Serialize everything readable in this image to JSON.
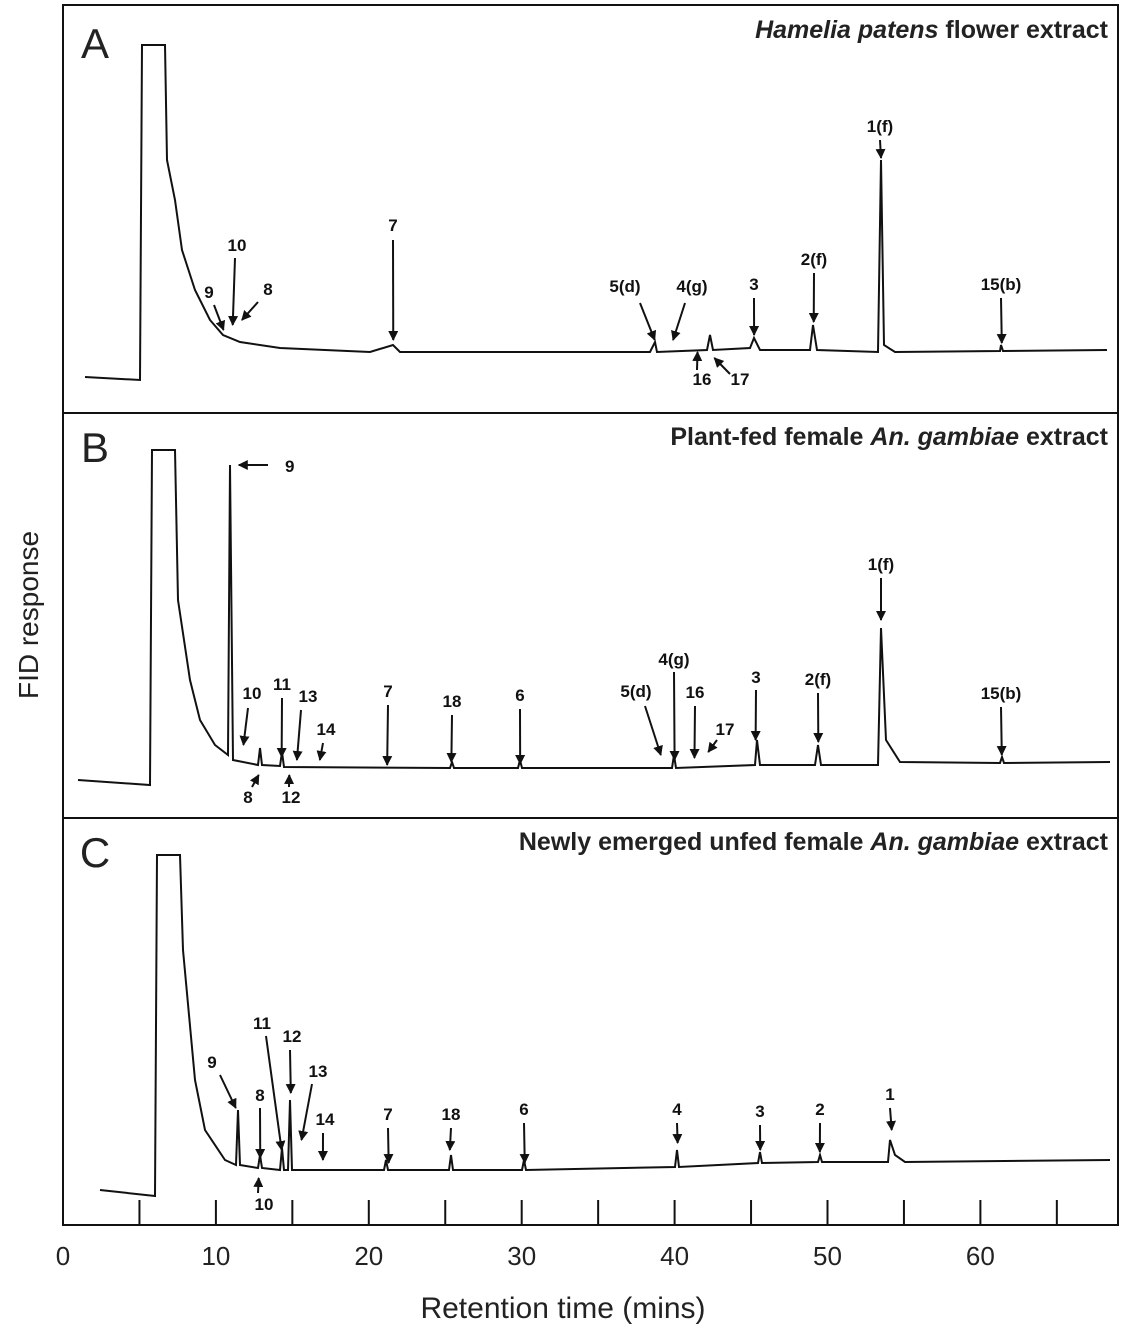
{
  "chart_data": {
    "type": "chromatogram",
    "x_label": "Retention time (mins)",
    "y_label": "FID response",
    "xlim": [
      0,
      69
    ],
    "xticks": [
      0,
      10,
      20,
      30,
      40,
      50,
      60
    ],
    "minor_xticks": [
      5,
      15,
      25,
      35,
      45,
      55,
      65
    ],
    "panels": [
      {
        "label": "A",
        "title": [
          {
            "text": "Hamelia patens",
            "italic": true
          },
          {
            "text": " flower extract",
            "italic": false
          }
        ],
        "peaks": [
          {
            "label": "9",
            "time": 10.5
          },
          {
            "label": "10",
            "time": 11.1
          },
          {
            "label": "8",
            "time": 11.7
          },
          {
            "label": "7",
            "time": 21.6
          },
          {
            "label": "5(d)",
            "time": 38.7
          },
          {
            "label": "4(g)",
            "time": 39.9
          },
          {
            "label": "16",
            "time": 41.5
          },
          {
            "label": "17",
            "time": 42.6
          },
          {
            "label": "3",
            "time": 45.2
          },
          {
            "label": "2(f)",
            "time": 49.1
          },
          {
            "label": "1(f)",
            "time": 53.5
          },
          {
            "label": "15(b)",
            "time": 61.4
          }
        ]
      },
      {
        "label": "B",
        "title": [
          {
            "text": "Plant-fed female ",
            "italic": false
          },
          {
            "text": "An. gambiae",
            "italic": true
          },
          {
            "text": " extract",
            "italic": false
          }
        ],
        "peaks": [
          {
            "label": "9",
            "time": 11.3
          },
          {
            "label": "10",
            "time": 11.8
          },
          {
            "label": "11",
            "time": 14.3
          },
          {
            "label": "13",
            "time": 15.3
          },
          {
            "label": "14",
            "time": 16.8
          },
          {
            "label": "8",
            "time": 12.8
          },
          {
            "label": "12",
            "time": 14.8
          },
          {
            "label": "7",
            "time": 21.2
          },
          {
            "label": "18",
            "time": 25.4
          },
          {
            "label": "6",
            "time": 29.9
          },
          {
            "label": "5(d)",
            "time": 39.1
          },
          {
            "label": "4(g)",
            "time": 40.0
          },
          {
            "label": "16",
            "time": 41.3
          },
          {
            "label": "17",
            "time": 42.2
          },
          {
            "label": "3",
            "time": 45.3
          },
          {
            "label": "2(f)",
            "time": 49.4
          },
          {
            "label": "1(f)",
            "time": 53.5
          },
          {
            "label": "15(b)",
            "time": 61.4
          }
        ]
      },
      {
        "label": "C",
        "title": [
          {
            "text": "Newly emerged unfed female ",
            "italic": false
          },
          {
            "text": "An. gambiae",
            "italic": true
          },
          {
            "text": " extract",
            "italic": false
          }
        ],
        "peaks": [
          {
            "label": "9",
            "time": 11.3
          },
          {
            "label": "8",
            "time": 12.9
          },
          {
            "label": "11",
            "time": 14.3
          },
          {
            "label": "12",
            "time": 14.9
          },
          {
            "label": "13",
            "time": 15.6
          },
          {
            "label": "14",
            "time": 17.0
          },
          {
            "label": "10",
            "time": 12.8
          },
          {
            "label": "7",
            "time": 21.3
          },
          {
            "label": "18",
            "time": 25.3
          },
          {
            "label": "6",
            "time": 30.2
          },
          {
            "label": "4",
            "time": 40.2
          },
          {
            "label": "3",
            "time": 45.6
          },
          {
            "label": "2",
            "time": 49.5
          },
          {
            "label": "1",
            "time": 54.2
          }
        ]
      }
    ]
  }
}
